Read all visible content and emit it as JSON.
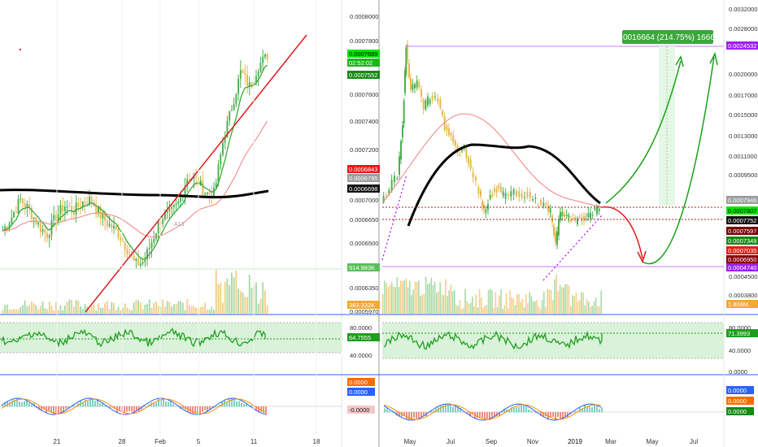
{
  "colors": {
    "up": "#53b987",
    "down": "#eb4d5c",
    "candle_up": "#4caf50",
    "candle_down": "#e6b84e",
    "trend_red": "#e01919",
    "black_ma": "#000000",
    "green_arrow": "#19a219",
    "rsi_line": "#1e9e1e",
    "rsi_band": "#d9f2d9",
    "macd_line": "#2962ff",
    "signal_line": "#ff8c00",
    "purple": "#b000ff",
    "divider": "#2962ff"
  },
  "measurement_label": "0.0016664 (214.75%) 16664",
  "left": {
    "x_ticks": [
      "21",
      "28",
      "Feb",
      "5",
      "11",
      "18"
    ],
    "price_ticks": [
      "0.0008000",
      "0.0007800",
      "0.0007600",
      "0.0007400",
      "0.0007200",
      "0.0007000",
      "0.0006650",
      "0.0006500",
      "0.0006350",
      "0.0006080",
      "0.0005970"
    ],
    "price_badges": [
      {
        "text": "0.0007689",
        "bg": "#00e600",
        "fg": "#000000"
      },
      {
        "text": "02:52:02",
        "bg": "#1fb51f",
        "fg": "#ffffff"
      },
      {
        "text": "0.0007552",
        "bg": "#158a15",
        "fg": "#ffffff"
      },
      {
        "text": "0.0006843",
        "bg": "#e61b1b",
        "fg": "#ffffff"
      },
      {
        "text": "0.0006795",
        "bg": "#9e9e9e",
        "fg": "#ffffff"
      },
      {
        "text": "0.0006698",
        "bg": "#111111",
        "fg": "#ffffff"
      },
      {
        "text": "914.983K",
        "bg": "#5bbf5b",
        "fg": "#ffffff"
      },
      {
        "text": "383.332K",
        "bg": "#f2a933",
        "fg": "#ffffff"
      }
    ],
    "rsi_ticks": [
      "80.0000",
      "40.0000"
    ],
    "rsi_badge": "64.7555",
    "macd_badges": [
      {
        "text": "0.0000",
        "bg": "#ff6a00",
        "fg": "#ffffff"
      },
      {
        "text": "0.0000",
        "bg": "#2962ff",
        "fg": "#ffffff"
      },
      {
        "text": "-0.0000",
        "bg": "#f5c6c6",
        "fg": "#222222"
      }
    ],
    "annotation": "A13"
  },
  "right": {
    "x_ticks": [
      "May",
      "Jul",
      "Sep",
      "Nov",
      "2019",
      "Mar",
      "May",
      "Jul"
    ],
    "price_ticks": [
      "0.0032000",
      "0.0028000",
      "0.0020000",
      "0.0017000",
      "0.0015000",
      "0.0013000",
      "0.0011000",
      "0.0009500",
      "0.0004500",
      "0.0003800"
    ],
    "price_badges": [
      {
        "text": "0.0024532",
        "bg": "#a020f0",
        "fg": "#ffffff"
      },
      {
        "text": "0.0007946",
        "bg": "#9e9e9e",
        "fg": "#ffffff"
      },
      {
        "text": "0.0007807",
        "bg": "#00e600",
        "fg": "#000000"
      },
      {
        "text": "0.0007752",
        "bg": "#111111",
        "fg": "#ffffff"
      },
      {
        "text": "0.0007597",
        "bg": "#7a0000",
        "fg": "#ffffff"
      },
      {
        "text": "0.0007349",
        "bg": "#158a15",
        "fg": "#ffffff"
      },
      {
        "text": "0.0007035",
        "bg": "#e61b1b",
        "fg": "#ffffff"
      },
      {
        "text": "0.0006950",
        "bg": "#8b0000",
        "fg": "#ffffff"
      },
      {
        "text": "0.0004740",
        "bg": "#a020f0",
        "fg": "#ffffff"
      },
      {
        "text": "1.806M",
        "bg": "#f2a933",
        "fg": "#ffffff"
      }
    ],
    "rsi_ticks": [
      "80.0000",
      "40.0000",
      "0.0000"
    ],
    "rsi_badge": "71.3993",
    "macd_badges": [
      {
        "text": "0.0000",
        "bg": "#2962ff",
        "fg": "#ffffff"
      },
      {
        "text": "0.0000",
        "bg": "#ff6a00",
        "fg": "#ffffff"
      },
      {
        "text": "0.0000",
        "bg": "#158a15",
        "fg": "#ffffff"
      }
    ]
  },
  "chart_data": [
    {
      "type": "candlestick",
      "panel": "left",
      "x_ticks": [
        "21",
        "28",
        "Feb",
        "5",
        "11",
        "18"
      ],
      "price_range": [
        0.000596,
        0.000802
      ],
      "close_series": [
        0.000651,
        0.00066,
        0.000672,
        0.000665,
        0.000655,
        0.000648,
        0.00066,
        0.000668,
        0.000664,
        0.00067,
        0.000672,
        0.000662,
        0.000655,
        0.00065,
        0.00064,
        0.000628,
        0.00063,
        0.000645,
        0.00066,
        0.000662,
        0.00067,
        0.000688,
        0.000685,
        0.000676,
        0.000676,
        0.000712,
        0.000735,
        0.000758,
        0.000748,
        0.000762,
        0.000769
      ],
      "last_price": 0.0007689,
      "rsi_last": 64.7555,
      "volume_labels": [
        "914.983K",
        "383.332K"
      ]
    },
    {
      "type": "candlestick",
      "panel": "right",
      "x_ticks": [
        "May",
        "Jul",
        "Sep",
        "Nov",
        "2019",
        "Mar",
        "May",
        "Jul"
      ],
      "projection_label": "0.0016664 (214.75%) 16664",
      "target_price": 0.0024532,
      "support_price": 0.000474,
      "rsi_last": 71.3993,
      "volume_last": "1.806M"
    }
  ]
}
